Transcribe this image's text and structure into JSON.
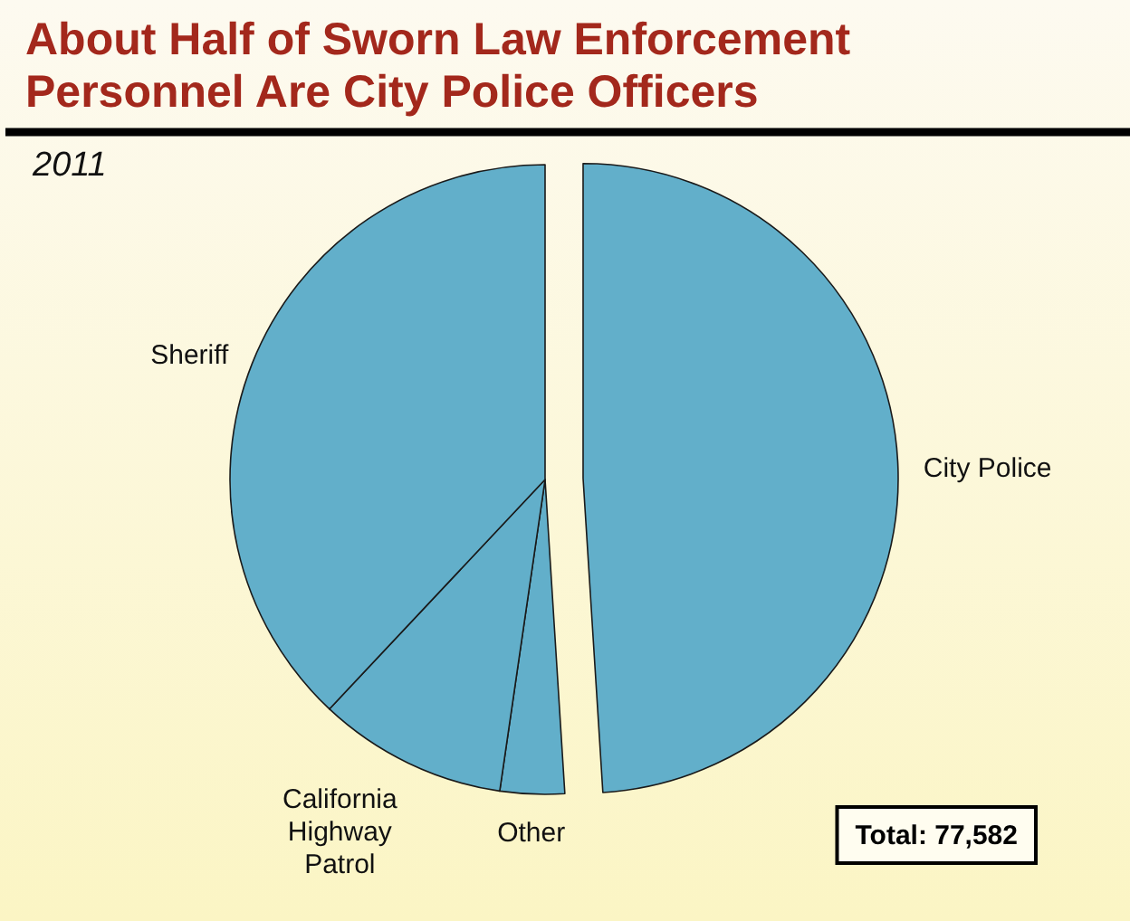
{
  "chart_data": {
    "type": "pie",
    "title": "About Half of Sworn Law Enforcement Personnel Are City Police Officers",
    "subtitle": "2011",
    "categories": [
      "City Police",
      "Other",
      "California Highway Patrol",
      "Sheriff"
    ],
    "values": [
      49,
      3.3,
      9.7,
      38
    ],
    "colors": [
      "#62afca",
      "#62afca",
      "#62afca",
      "#62afca"
    ],
    "annotations": [
      "Total: 77,582"
    ]
  }
}
